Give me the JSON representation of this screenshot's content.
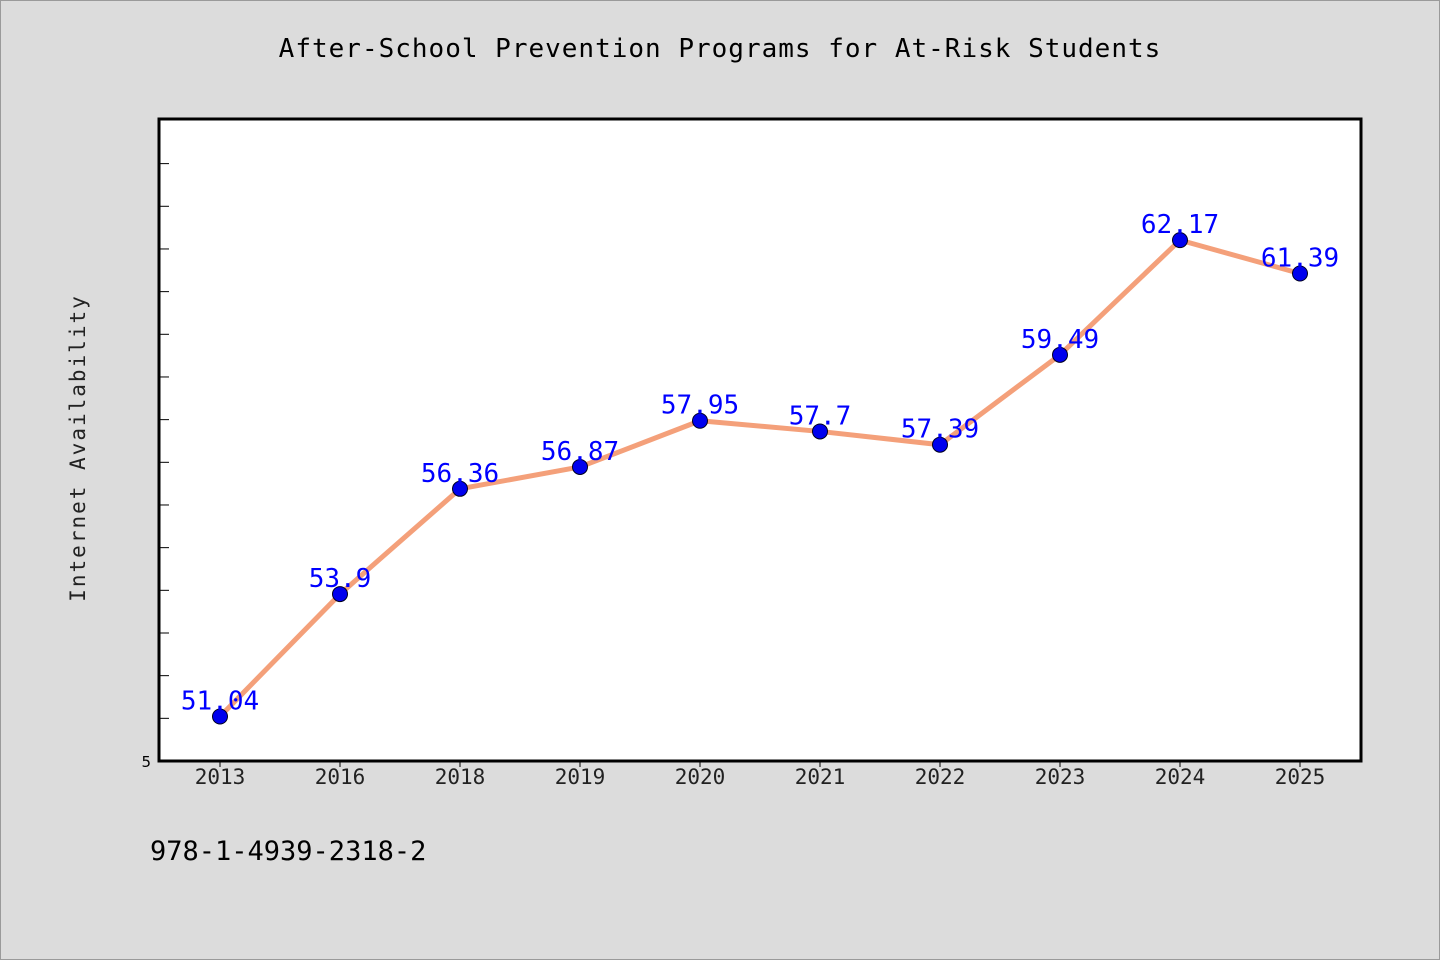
{
  "title": "After-School Prevention Programs for At-Risk Students",
  "footer_text": "978-1-4939-2318-2",
  "colors": {
    "background": "#dcdcdc",
    "plot_background": "#ffffff",
    "line": "#f4a07a",
    "marker": "#0000ee",
    "data_label": "#0000ff"
  },
  "chart_data": {
    "type": "line",
    "title": "After-School Prevention Programs for At-Risk Students",
    "xlabel": "",
    "ylabel": "Internet Availability",
    "categories": [
      "2013",
      "2016",
      "2018",
      "2019",
      "2020",
      "2021",
      "2022",
      "2023",
      "2024",
      "2025"
    ],
    "series": [
      {
        "values": [
          51.04,
          53.9,
          56.36,
          56.87,
          57.95,
          57.7,
          57.39,
          59.49,
          62.17,
          61.39
        ]
      }
    ],
    "data_labels": [
      "51.04",
      "53.9",
      "56.36",
      "56.87",
      "57.95",
      "57.7",
      "57.39",
      "59.49",
      "62.17",
      "61.39"
    ],
    "ylim": [
      50,
      65
    ],
    "y_tick_labels": [
      "5"
    ],
    "grid": false,
    "legend": "none"
  }
}
